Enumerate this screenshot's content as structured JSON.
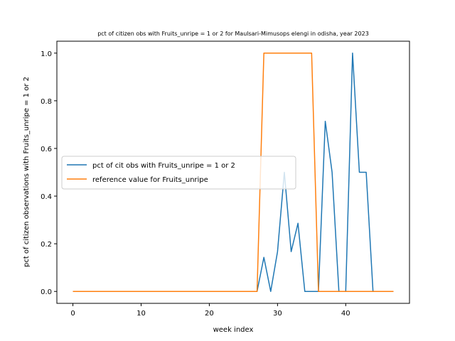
{
  "chart_data": {
    "type": "line",
    "title": "pct of citizen obs with Fruits_unripe = 1 or 2 for Maulsari-Mimusops elengi in odisha, year 2023",
    "xlabel": "week index",
    "ylabel": "pct of citizen observations with Fruits_unripe = 1 or 2",
    "xlim": [
      -2.35,
      49.35
    ],
    "ylim": [
      -0.05,
      1.05
    ],
    "xticks": [
      0,
      10,
      20,
      30,
      40
    ],
    "yticks": [
      0.0,
      0.2,
      0.4,
      0.6,
      0.8,
      1.0
    ],
    "xtick_labels": [
      "0",
      "10",
      "20",
      "30",
      "40"
    ],
    "ytick_labels": [
      "0.0",
      "0.2",
      "0.4",
      "0.6",
      "0.8",
      "1.0"
    ],
    "grid": false,
    "legend_position": "center-left",
    "series": [
      {
        "name": "pct of cit obs with Fruits_unripe = 1 or 2",
        "color": "#1f77b4",
        "x": [
          0,
          1,
          2,
          3,
          4,
          5,
          6,
          7,
          8,
          9,
          10,
          11,
          12,
          13,
          14,
          15,
          16,
          17,
          18,
          19,
          20,
          21,
          22,
          23,
          24,
          25,
          26,
          27,
          28,
          29,
          30,
          31,
          32,
          33,
          34,
          35,
          36,
          37,
          38,
          39,
          40,
          41,
          42,
          43,
          44,
          45,
          46,
          47
        ],
        "y": [
          0,
          0,
          0,
          0,
          0,
          0,
          0,
          0,
          0,
          0,
          0,
          0,
          0,
          0,
          0,
          0,
          0,
          0,
          0,
          0,
          0,
          0,
          0,
          0,
          0,
          0,
          0,
          0,
          0.143,
          0,
          0.167,
          0.5,
          0.167,
          0.286,
          0,
          0,
          0,
          0.714,
          0.5,
          0,
          0,
          1.0,
          0.5,
          0.5,
          0,
          0,
          0,
          0
        ]
      },
      {
        "name": "reference value for Fruits_unripe",
        "color": "#ff7f0e",
        "x": [
          0,
          1,
          2,
          3,
          4,
          5,
          6,
          7,
          8,
          9,
          10,
          11,
          12,
          13,
          14,
          15,
          16,
          17,
          18,
          19,
          20,
          21,
          22,
          23,
          24,
          25,
          26,
          27,
          28,
          29,
          30,
          31,
          32,
          33,
          34,
          35,
          36,
          37,
          38,
          39,
          40,
          41,
          42,
          43,
          44,
          45,
          46,
          47
        ],
        "y": [
          0,
          0,
          0,
          0,
          0,
          0,
          0,
          0,
          0,
          0,
          0,
          0,
          0,
          0,
          0,
          0,
          0,
          0,
          0,
          0,
          0,
          0,
          0,
          0,
          0,
          0,
          0,
          0,
          1,
          1,
          1,
          1,
          1,
          1,
          1,
          1,
          0,
          0,
          0,
          0,
          0,
          0,
          0,
          0,
          0,
          0,
          0,
          0
        ]
      }
    ]
  }
}
